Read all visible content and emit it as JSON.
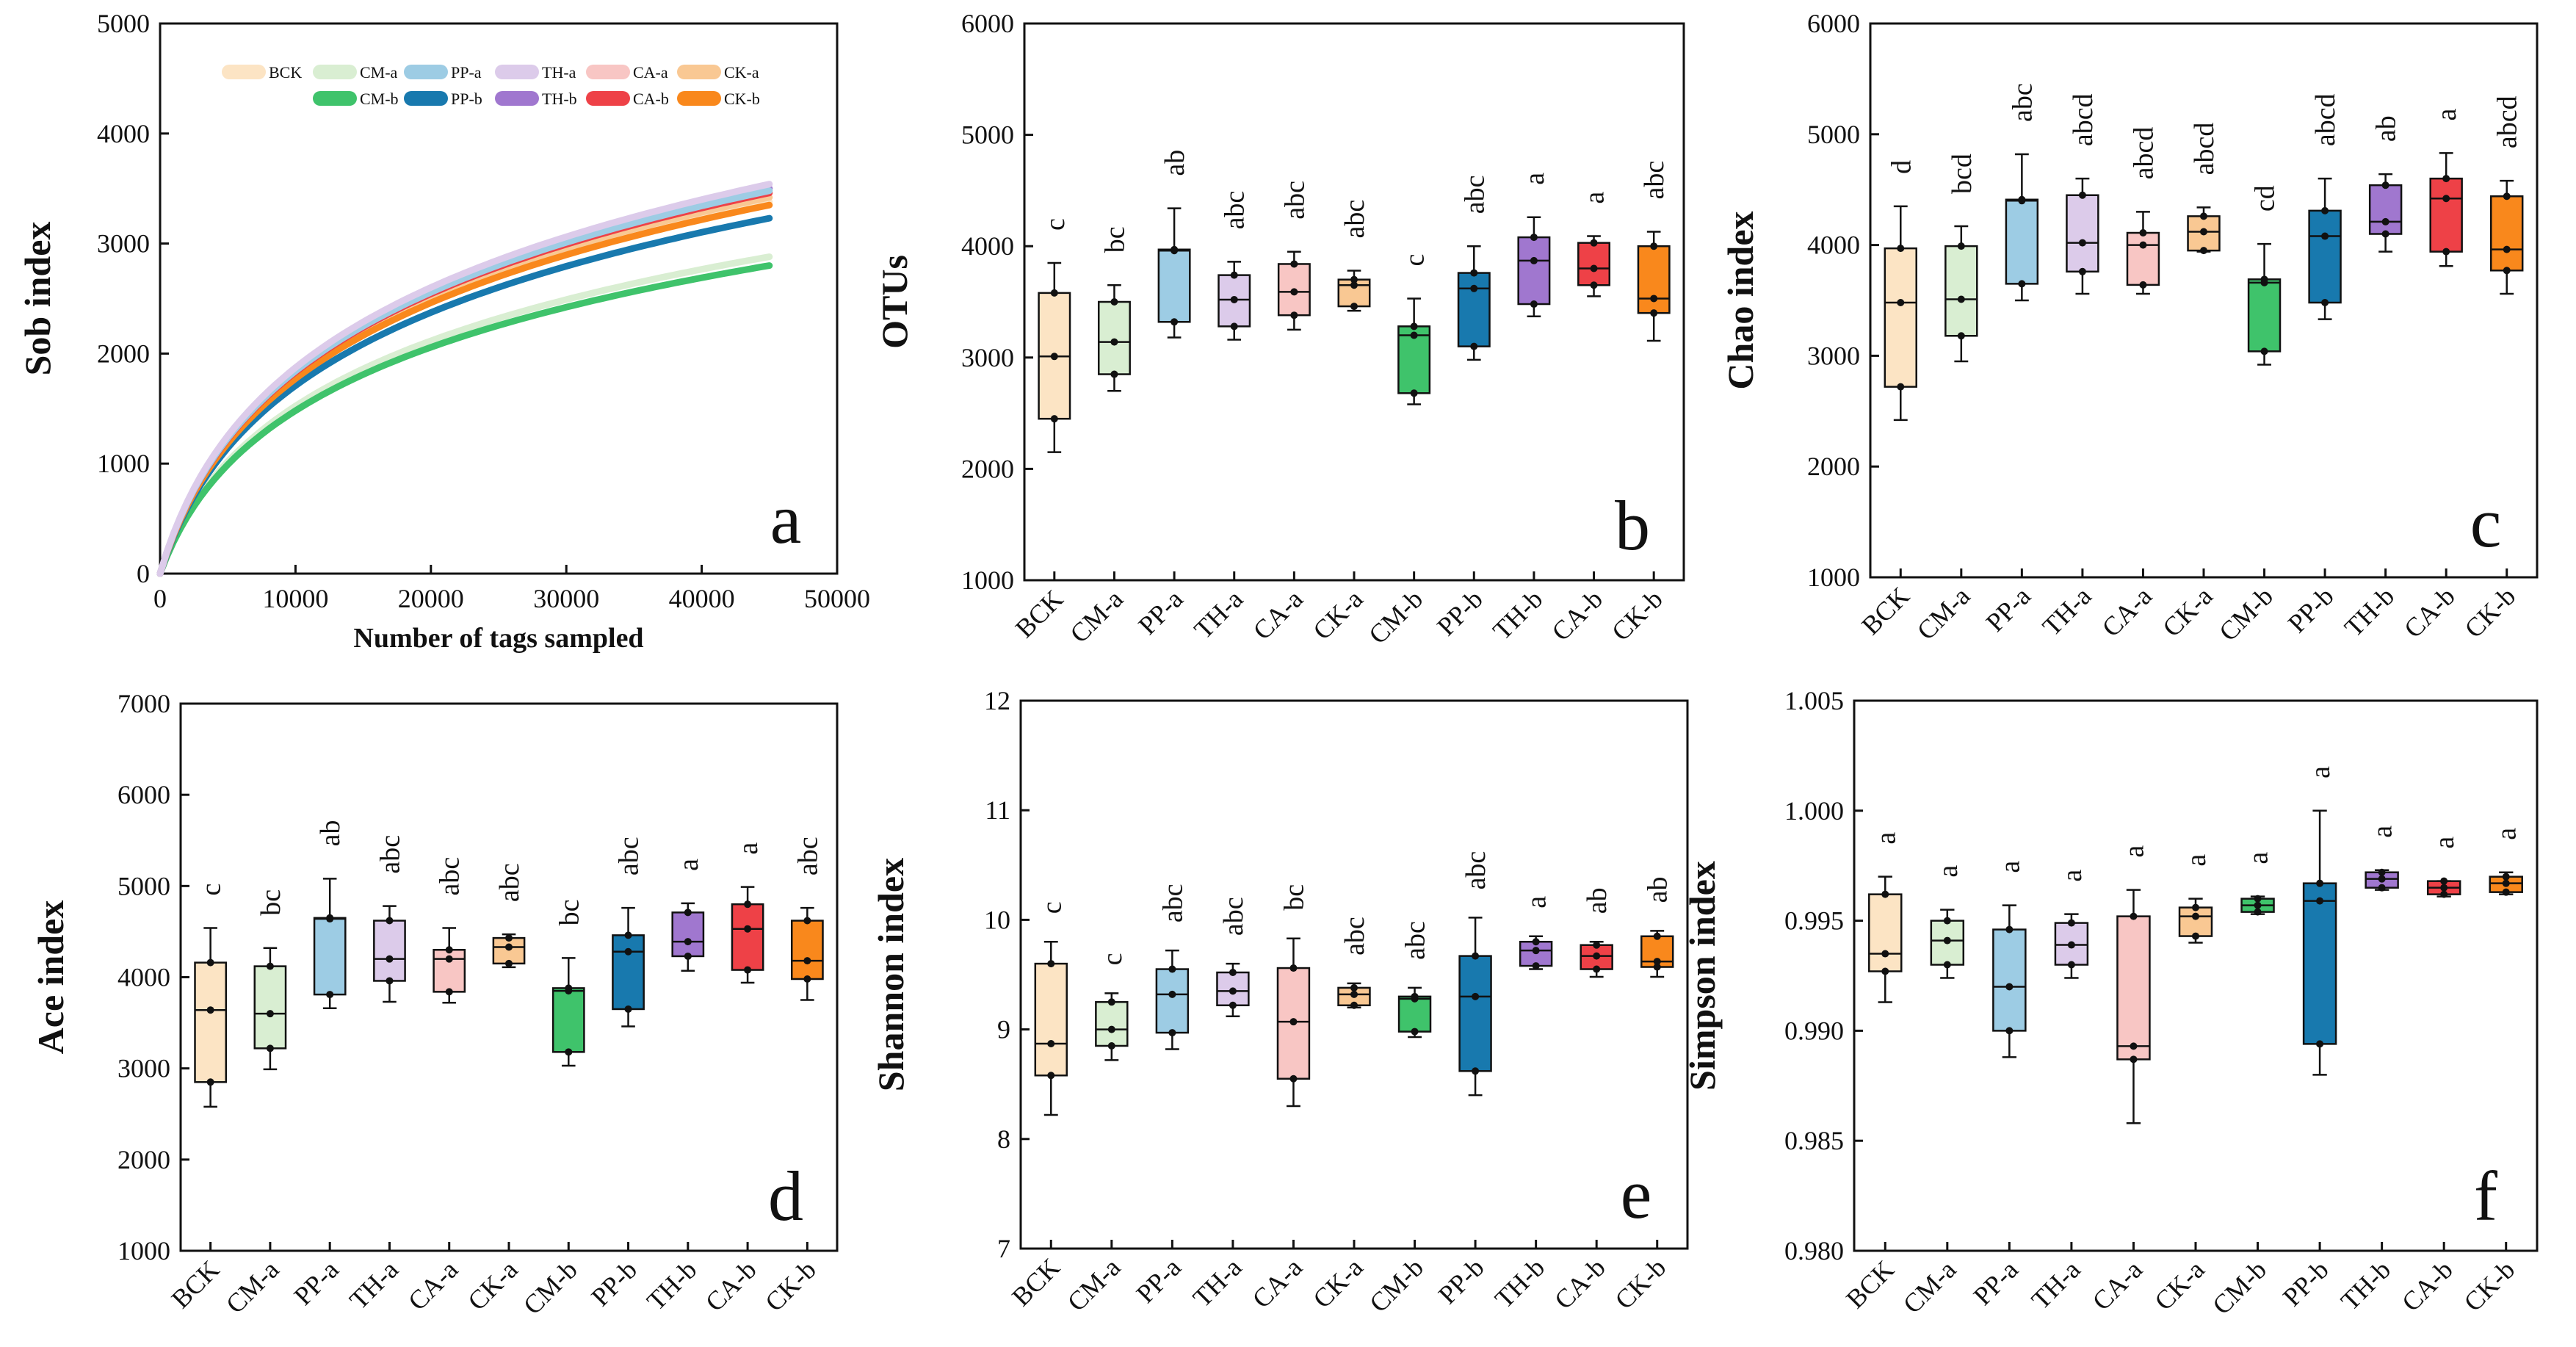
{
  "colors": {
    "BCK": "#FCE4C4",
    "CM-a": "#D9EED2",
    "PP-a": "#9DCCE4",
    "TH-a": "#DCCBEA",
    "CA-a": "#F8C6C4",
    "CK-a": "#F9C893",
    "CM-b": "#3FC36B",
    "PP-b": "#1879AE",
    "TH-b": "#A077CF",
    "CA-b": "#EE4147",
    "CK-b": "#F9881C"
  },
  "groups": [
    "BCK",
    "CM-a",
    "PP-a",
    "TH-a",
    "CA-a",
    "CK-a",
    "CM-b",
    "PP-b",
    "TH-b",
    "CA-b",
    "CK-b"
  ],
  "chart_data": [
    {
      "id": "a",
      "type": "line",
      "panel_label": "a",
      "xlabel": "Number of tags sampled",
      "ylabel": "Sob index",
      "xlim": [
        0,
        50000
      ],
      "ylim": [
        0,
        5000
      ],
      "xticks": [
        0,
        10000,
        20000,
        30000,
        40000,
        50000
      ],
      "yticks": [
        0,
        1000,
        2000,
        3000,
        4000,
        5000
      ],
      "legend_position": "top",
      "series": [
        {
          "name": "BCK",
          "final": 3380
        },
        {
          "name": "CM-a",
          "final": 2880
        },
        {
          "name": "PP-a",
          "final": 3480
        },
        {
          "name": "TH-a",
          "final": 3540
        },
        {
          "name": "CA-a",
          "final": 3480
        },
        {
          "name": "CK-a",
          "final": 3420
        },
        {
          "name": "CM-b",
          "final": 2800
        },
        {
          "name": "PP-b",
          "final": 3230
        },
        {
          "name": "TH-b",
          "final": 3500
        },
        {
          "name": "CA-b",
          "final": 3460
        },
        {
          "name": "CK-b",
          "final": 3350
        }
      ],
      "x_end": 45000
    },
    {
      "id": "b",
      "type": "box",
      "panel_label": "b",
      "ylabel": "OTUs",
      "ylim": [
        1000,
        6000
      ],
      "yticks": [
        1000,
        2000,
        3000,
        4000,
        5000,
        6000
      ],
      "boxes": [
        {
          "name": "BCK",
          "min": 2150,
          "q1": 2450,
          "median": 3010,
          "q3": 3580,
          "max": 3850,
          "points": [
            2450,
            3010,
            3580
          ],
          "sig": "c"
        },
        {
          "name": "CM-a",
          "min": 2700,
          "q1": 2850,
          "median": 3140,
          "q3": 3500,
          "max": 3650,
          "points": [
            2850,
            3140,
            3500
          ],
          "sig": "bc"
        },
        {
          "name": "PP-a",
          "min": 3180,
          "q1": 3320,
          "median": 3960,
          "q3": 3970,
          "max": 4340,
          "points": [
            3320,
            3960,
            3970
          ],
          "sig": "ab"
        },
        {
          "name": "TH-a",
          "min": 3160,
          "q1": 3280,
          "median": 3520,
          "q3": 3740,
          "max": 3860,
          "points": [
            3280,
            3520,
            3740
          ],
          "sig": "abc"
        },
        {
          "name": "CA-a",
          "min": 3250,
          "q1": 3380,
          "median": 3590,
          "q3": 3840,
          "max": 3950,
          "points": [
            3380,
            3590,
            3840
          ],
          "sig": "abc"
        },
        {
          "name": "CK-a",
          "min": 3420,
          "q1": 3460,
          "median": 3650,
          "q3": 3700,
          "max": 3780,
          "points": [
            3460,
            3650,
            3700
          ],
          "sig": "abc"
        },
        {
          "name": "CM-b",
          "min": 2580,
          "q1": 2680,
          "median": 3200,
          "q3": 3280,
          "max": 3530,
          "points": [
            2680,
            3200,
            3280
          ],
          "sig": "c"
        },
        {
          "name": "PP-b",
          "min": 2980,
          "q1": 3100,
          "median": 3620,
          "q3": 3760,
          "max": 4000,
          "points": [
            3100,
            3620,
            3760
          ],
          "sig": "abc"
        },
        {
          "name": "TH-b",
          "min": 3370,
          "q1": 3480,
          "median": 3870,
          "q3": 4080,
          "max": 4260,
          "points": [
            3480,
            3870,
            4080
          ],
          "sig": "a"
        },
        {
          "name": "CA-b",
          "min": 3550,
          "q1": 3650,
          "median": 3800,
          "q3": 4030,
          "max": 4090,
          "points": [
            3650,
            3800,
            4030
          ],
          "sig": "a"
        },
        {
          "name": "CK-b",
          "min": 3150,
          "q1": 3400,
          "median": 3530,
          "q3": 4000,
          "max": 4130,
          "points": [
            3400,
            3530,
            4000
          ],
          "sig": "abc"
        }
      ]
    },
    {
      "id": "c",
      "type": "box",
      "panel_label": "c",
      "ylabel": "Chao index",
      "ylim": [
        1000,
        6000
      ],
      "yticks": [
        1000,
        2000,
        3000,
        4000,
        5000,
        6000
      ],
      "boxes": [
        {
          "name": "BCK",
          "min": 2420,
          "q1": 2720,
          "median": 3480,
          "q3": 3970,
          "max": 4350,
          "points": [
            2720,
            3480,
            3970
          ],
          "sig": "d"
        },
        {
          "name": "CM-a",
          "min": 2950,
          "q1": 3180,
          "median": 3510,
          "q3": 3990,
          "max": 4170,
          "points": [
            3180,
            3510,
            3990
          ],
          "sig": "bcd"
        },
        {
          "name": "PP-a",
          "min": 3500,
          "q1": 3650,
          "median": 4400,
          "q3": 4410,
          "max": 4820,
          "points": [
            3650,
            4400,
            4410
          ],
          "sig": "abc"
        },
        {
          "name": "TH-a",
          "min": 3560,
          "q1": 3760,
          "median": 4020,
          "q3": 4450,
          "max": 4600,
          "points": [
            3760,
            4020,
            4450
          ],
          "sig": "abcd"
        },
        {
          "name": "CA-a",
          "min": 3560,
          "q1": 3640,
          "median": 4000,
          "q3": 4110,
          "max": 4300,
          "points": [
            3640,
            4000,
            4110
          ],
          "sig": "abcd"
        },
        {
          "name": "CK-a",
          "min": 3940,
          "q1": 3950,
          "median": 4120,
          "q3": 4260,
          "max": 4340,
          "points": [
            3950,
            4120,
            4260
          ],
          "sig": "abcd"
        },
        {
          "name": "CM-b",
          "min": 2920,
          "q1": 3040,
          "median": 3660,
          "q3": 3690,
          "max": 4010,
          "points": [
            3040,
            3660,
            3690
          ],
          "sig": "cd"
        },
        {
          "name": "PP-b",
          "min": 3330,
          "q1": 3480,
          "median": 4080,
          "q3": 4310,
          "max": 4600,
          "points": [
            3480,
            4080,
            4310
          ],
          "sig": "abcd"
        },
        {
          "name": "TH-b",
          "min": 3940,
          "q1": 4100,
          "median": 4210,
          "q3": 4540,
          "max": 4640,
          "points": [
            4100,
            4210,
            4540
          ],
          "sig": "ab"
        },
        {
          "name": "CA-b",
          "min": 3810,
          "q1": 3940,
          "median": 4420,
          "q3": 4600,
          "max": 4830,
          "points": [
            3940,
            4420,
            4600
          ],
          "sig": "a"
        },
        {
          "name": "CK-b",
          "min": 3560,
          "q1": 3770,
          "median": 3960,
          "q3": 4440,
          "max": 4580,
          "points": [
            3770,
            3960,
            4440
          ],
          "sig": "abcd"
        }
      ]
    },
    {
      "id": "d",
      "type": "box",
      "panel_label": "d",
      "ylabel": "Ace index",
      "ylim": [
        1000,
        7000
      ],
      "yticks": [
        1000,
        2000,
        3000,
        4000,
        5000,
        6000,
        7000
      ],
      "boxes": [
        {
          "name": "BCK",
          "min": 2580,
          "q1": 2850,
          "median": 3640,
          "q3": 4160,
          "max": 4540,
          "points": [
            2850,
            3640,
            4160
          ],
          "sig": "c"
        },
        {
          "name": "CM-a",
          "min": 2990,
          "q1": 3220,
          "median": 3600,
          "q3": 4120,
          "max": 4320,
          "points": [
            3220,
            3600,
            4120
          ],
          "sig": "bc"
        },
        {
          "name": "PP-a",
          "min": 3660,
          "q1": 3810,
          "median": 4640,
          "q3": 4650,
          "max": 5080,
          "points": [
            3810,
            4640,
            4650
          ],
          "sig": "ab"
        },
        {
          "name": "TH-a",
          "min": 3730,
          "q1": 3960,
          "median": 4200,
          "q3": 4620,
          "max": 4780,
          "points": [
            3960,
            4200,
            4620
          ],
          "sig": "abc"
        },
        {
          "name": "CA-a",
          "min": 3720,
          "q1": 3840,
          "median": 4200,
          "q3": 4300,
          "max": 4540,
          "points": [
            3840,
            4200,
            4300
          ],
          "sig": "abc"
        },
        {
          "name": "CK-a",
          "min": 4110,
          "q1": 4150,
          "median": 4330,
          "q3": 4430,
          "max": 4470,
          "points": [
            4150,
            4330,
            4430
          ],
          "sig": "abc"
        },
        {
          "name": "CM-b",
          "min": 3030,
          "q1": 3180,
          "median": 3850,
          "q3": 3880,
          "max": 4210,
          "points": [
            3180,
            3850,
            3880
          ],
          "sig": "bc"
        },
        {
          "name": "PP-b",
          "min": 3460,
          "q1": 3650,
          "median": 4280,
          "q3": 4460,
          "max": 4760,
          "points": [
            3650,
            4280,
            4460
          ],
          "sig": "abc"
        },
        {
          "name": "TH-b",
          "min": 4070,
          "q1": 4230,
          "median": 4390,
          "q3": 4710,
          "max": 4810,
          "points": [
            4230,
            4390,
            4710
          ],
          "sig": "a"
        },
        {
          "name": "CA-b",
          "min": 3940,
          "q1": 4080,
          "median": 4530,
          "q3": 4800,
          "max": 4990,
          "points": [
            4080,
            4530,
            4800
          ],
          "sig": "a"
        },
        {
          "name": "CK-b",
          "min": 3750,
          "q1": 3980,
          "median": 4180,
          "q3": 4620,
          "max": 4760,
          "points": [
            3980,
            4180,
            4620
          ],
          "sig": "abc"
        }
      ]
    },
    {
      "id": "e",
      "type": "box",
      "panel_label": "e",
      "ylabel": "Shannon index",
      "ylim": [
        7,
        12
      ],
      "yticks": [
        7,
        8,
        9,
        10,
        11,
        12
      ],
      "boxes": [
        {
          "name": "BCK",
          "min": 8.22,
          "q1": 8.58,
          "median": 8.87,
          "q3": 9.6,
          "max": 9.8,
          "points": [
            8.58,
            8.87,
            9.6
          ],
          "sig": "c"
        },
        {
          "name": "CM-a",
          "min": 8.72,
          "q1": 8.85,
          "median": 9.0,
          "q3": 9.25,
          "max": 9.33,
          "points": [
            8.85,
            9.0,
            9.25
          ],
          "sig": "c"
        },
        {
          "name": "PP-a",
          "min": 8.82,
          "q1": 8.97,
          "median": 9.32,
          "q3": 9.55,
          "max": 9.72,
          "points": [
            8.97,
            9.32,
            9.55
          ],
          "sig": "abc"
        },
        {
          "name": "TH-a",
          "min": 9.12,
          "q1": 9.22,
          "median": 9.35,
          "q3": 9.52,
          "max": 9.6,
          "points": [
            9.22,
            9.35,
            9.52
          ],
          "sig": "abc"
        },
        {
          "name": "CA-a",
          "min": 8.3,
          "q1": 8.55,
          "median": 9.07,
          "q3": 9.56,
          "max": 9.83,
          "points": [
            8.55,
            9.07,
            9.56
          ],
          "sig": "bc"
        },
        {
          "name": "CK-a",
          "min": 9.2,
          "q1": 9.22,
          "median": 9.32,
          "q3": 9.38,
          "max": 9.42,
          "points": [
            9.22,
            9.32,
            9.38
          ],
          "sig": "abc"
        },
        {
          "name": "CM-b",
          "min": 8.93,
          "q1": 8.98,
          "median": 9.28,
          "q3": 9.3,
          "max": 9.38,
          "points": [
            8.98,
            9.28,
            9.3
          ],
          "sig": "abc"
        },
        {
          "name": "PP-b",
          "min": 8.4,
          "q1": 8.62,
          "median": 9.3,
          "q3": 9.67,
          "max": 10.02,
          "points": [
            8.62,
            9.3,
            9.67
          ],
          "sig": "abc"
        },
        {
          "name": "TH-b",
          "min": 9.55,
          "q1": 9.58,
          "median": 9.72,
          "q3": 9.8,
          "max": 9.85,
          "points": [
            9.58,
            9.72,
            9.8
          ],
          "sig": "a"
        },
        {
          "name": "CA-b",
          "min": 9.48,
          "q1": 9.55,
          "median": 9.67,
          "q3": 9.77,
          "max": 9.8,
          "points": [
            9.55,
            9.67,
            9.77
          ],
          "sig": "ab"
        },
        {
          "name": "CK-b",
          "min": 9.48,
          "q1": 9.57,
          "median": 9.62,
          "q3": 9.85,
          "max": 9.9,
          "points": [
            9.57,
            9.62,
            9.85
          ],
          "sig": "ab"
        }
      ]
    },
    {
      "id": "f",
      "type": "box",
      "panel_label": "f",
      "ylabel": "Simpson index",
      "ylim": [
        0.98,
        1.005
      ],
      "yticks": [
        "0.980",
        "0.985",
        "0.990",
        "0.995",
        "1.000",
        "1.005"
      ],
      "boxes": [
        {
          "name": "BCK",
          "min": 0.9913,
          "q1": 0.9927,
          "median": 0.9935,
          "q3": 0.9962,
          "max": 0.997,
          "points": [
            0.9927,
            0.9935,
            0.9962
          ],
          "sig": "a"
        },
        {
          "name": "CM-a",
          "min": 0.9924,
          "q1": 0.993,
          "median": 0.9941,
          "q3": 0.995,
          "max": 0.9955,
          "points": [
            0.993,
            0.9941,
            0.995
          ],
          "sig": "a"
        },
        {
          "name": "PP-a",
          "min": 0.9888,
          "q1": 0.99,
          "median": 0.992,
          "q3": 0.9946,
          "max": 0.9957,
          "points": [
            0.99,
            0.992,
            0.9946
          ],
          "sig": "a"
        },
        {
          "name": "TH-a",
          "min": 0.9924,
          "q1": 0.993,
          "median": 0.9939,
          "q3": 0.9949,
          "max": 0.9953,
          "points": [
            0.993,
            0.9939,
            0.9949
          ],
          "sig": "a"
        },
        {
          "name": "CA-a",
          "min": 0.9858,
          "q1": 0.9887,
          "median": 0.9893,
          "q3": 0.9952,
          "max": 0.9964,
          "points": [
            0.9887,
            0.9893,
            0.9952
          ],
          "sig": "a"
        },
        {
          "name": "CK-a",
          "min": 0.994,
          "q1": 0.9943,
          "median": 0.9952,
          "q3": 0.9956,
          "max": 0.996,
          "points": [
            0.9943,
            0.9952,
            0.9956
          ],
          "sig": "a"
        },
        {
          "name": "CM-b",
          "min": 0.9953,
          "q1": 0.9954,
          "median": 0.9957,
          "q3": 0.996,
          "max": 0.9961,
          "points": [
            0.9954,
            0.9957,
            0.996
          ],
          "sig": "a"
        },
        {
          "name": "PP-b",
          "min": 0.988,
          "q1": 0.9894,
          "median": 0.9959,
          "q3": 0.9967,
          "max": 1.0,
          "points": [
            0.9894,
            0.9959,
            0.9967
          ],
          "sig": "a"
        },
        {
          "name": "TH-b",
          "min": 0.9964,
          "q1": 0.9965,
          "median": 0.9969,
          "q3": 0.9972,
          "max": 0.9973,
          "points": [
            0.9965,
            0.9969,
            0.9972
          ],
          "sig": "a"
        },
        {
          "name": "CA-b",
          "min": 0.9961,
          "q1": 0.9962,
          "median": 0.9965,
          "q3": 0.9968,
          "max": 0.9968,
          "points": [
            0.9962,
            0.9965,
            0.9968
          ],
          "sig": "a"
        },
        {
          "name": "CK-b",
          "min": 0.9962,
          "q1": 0.9963,
          "median": 0.9967,
          "q3": 0.997,
          "max": 0.9972,
          "points": [
            0.9963,
            0.9967,
            0.997
          ],
          "sig": "a"
        }
      ]
    }
  ]
}
